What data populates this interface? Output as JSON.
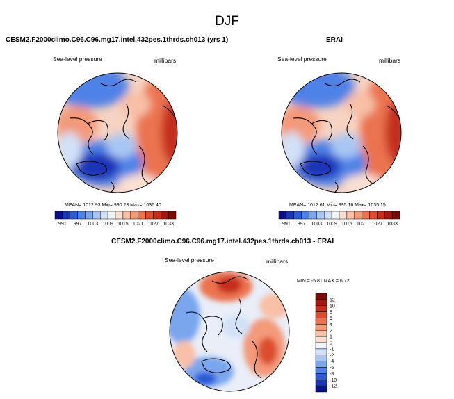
{
  "figure": {
    "title": "DJF",
    "panels": [
      {
        "title": "CESM2.F2000climo.C96.C96.mg17.intel.432pes.1thrds.ch013 (yrs 1)",
        "left_label": "Sea-level pressure",
        "right_label": "millibars",
        "stats": "MEAN= 1012.93  Min= 990.23  Max= 1036.40"
      },
      {
        "title": "ERAI",
        "left_label": "Sea-level pressure",
        "right_label": "millibars",
        "stats": "MEAN= 1012.61  Min= 995.16  Max= 1035.15"
      },
      {
        "title": "CESM2.F2000climo.C96.C96.mg17.intel.432pes.1thrds.ch013 - ERAI",
        "left_label": "Sea-level pressure",
        "right_label": "millibars",
        "stats": "MIN = -5.81  MAX = 6.72"
      }
    ],
    "colorbar_slp": {
      "labels": [
        "991",
        "997",
        "1003",
        "1009",
        "1015",
        "1021",
        "1027",
        "1033"
      ],
      "colors": [
        "#08108a",
        "#1a35b8",
        "#2b5cd6",
        "#4f82e6",
        "#7aa6ee",
        "#a8c6f3",
        "#d2e1f7",
        "#f1f3f8",
        "#fbe0d2",
        "#f8c0a6",
        "#f39a79",
        "#eb7350",
        "#dd4d2d",
        "#c52e1a",
        "#a3180e",
        "#7d0a06"
      ]
    },
    "colorbar_diff": {
      "labels": [
        "12",
        "10",
        "8",
        "6",
        "4",
        "2",
        "1",
        "0",
        "-1",
        "-2",
        "-4",
        "-6",
        "-8",
        "-10",
        "-12"
      ],
      "colors": [
        "#7d0a06",
        "#a3180e",
        "#c52e1a",
        "#dd4d2d",
        "#eb7350",
        "#f39a79",
        "#f8c0a6",
        "#fbe0d2",
        "#f3f5fa",
        "#d2e1f7",
        "#a8c6f3",
        "#7aa6ee",
        "#4f82e6",
        "#2b5cd6",
        "#1a35b8",
        "#08108a"
      ]
    }
  }
}
